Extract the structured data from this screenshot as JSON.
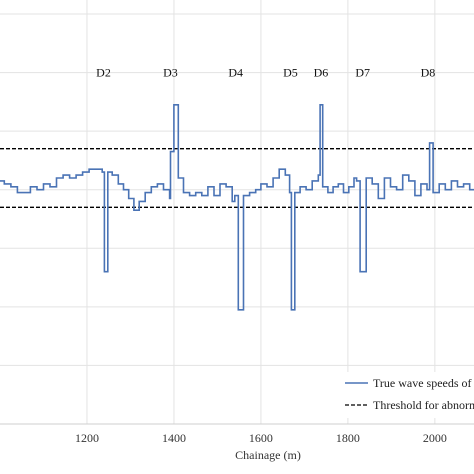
{
  "chart_data": {
    "type": "line",
    "xlabel": "Chainage (m)",
    "ylabel": "",
    "title": "",
    "xlim": [
      1000,
      2090
    ],
    "ylim": [
      0,
      7
    ],
    "x_ticks": [
      1200,
      1400,
      1600,
      1800,
      2000
    ],
    "y_grid": [
      1,
      2,
      3,
      4,
      5,
      6,
      7
    ],
    "grid": true,
    "colors": {
      "series": "#4a73b5",
      "threshold": "#000000",
      "grid": "#e3e3e3"
    },
    "series": [
      {
        "name": "True wave speeds of",
        "style": "step",
        "x": [
          1000,
          1010,
          1025,
          1040,
          1055,
          1070,
          1085,
          1100,
          1115,
          1130,
          1145,
          1160,
          1175,
          1190,
          1205,
          1220,
          1235,
          1240,
          1248,
          1258,
          1272,
          1284,
          1296,
          1308,
          1320,
          1334,
          1348,
          1362,
          1376,
          1390,
          1392,
          1400,
          1410,
          1422,
          1436,
          1450,
          1464,
          1478,
          1492,
          1506,
          1520,
          1534,
          1540,
          1548,
          1560,
          1574,
          1588,
          1600,
          1614,
          1628,
          1642,
          1656,
          1666,
          1670,
          1678,
          1690,
          1704,
          1718,
          1732,
          1736,
          1742,
          1754,
          1766,
          1778,
          1790,
          1802,
          1814,
          1820,
          1828,
          1842,
          1856,
          1870,
          1884,
          1898,
          1912,
          1926,
          1940,
          1954,
          1968,
          1982,
          1988,
          1996,
          2010,
          2024,
          2038,
          2052,
          2066,
          2080,
          2090
        ],
        "y": [
          4.15,
          4.1,
          4.05,
          3.95,
          3.95,
          4.05,
          4.0,
          4.1,
          4.05,
          4.2,
          4.25,
          4.2,
          4.25,
          4.3,
          4.35,
          4.35,
          4.3,
          2.6,
          4.3,
          4.25,
          4.1,
          4.0,
          3.85,
          3.65,
          3.8,
          3.95,
          4.05,
          4.1,
          4.0,
          3.85,
          4.65,
          5.45,
          4.2,
          3.95,
          3.9,
          3.95,
          3.9,
          4.05,
          3.9,
          4.1,
          4.05,
          3.8,
          3.9,
          1.95,
          3.9,
          3.95,
          4.0,
          4.1,
          4.05,
          4.2,
          4.35,
          4.25,
          3.95,
          1.95,
          3.95,
          4.05,
          4.0,
          4.15,
          4.25,
          5.45,
          4.05,
          3.95,
          4.05,
          4.1,
          3.95,
          4.05,
          4.2,
          4.15,
          2.6,
          4.2,
          4.1,
          3.85,
          4.2,
          4.05,
          4.0,
          4.25,
          4.15,
          3.9,
          4.1,
          4.0,
          4.8,
          3.95,
          4.1,
          4.0,
          4.15,
          4.05,
          4.1,
          4.0,
          4.0
        ]
      },
      {
        "name": "Threshold for abnorm",
        "style": "dashed",
        "y_upper": 4.7,
        "y_lower": 3.7
      }
    ],
    "annotations": [
      {
        "label": "D2",
        "x": 1238
      },
      {
        "label": "D3",
        "x": 1392
      },
      {
        "label": "D4",
        "x": 1542
      },
      {
        "label": "D5",
        "x": 1668
      },
      {
        "label": "D6",
        "x": 1738
      },
      {
        "label": "D7",
        "x": 1834
      },
      {
        "label": "D8",
        "x": 1984
      }
    ],
    "annotation_y": 6.0,
    "legend_position": "bottom-right"
  }
}
